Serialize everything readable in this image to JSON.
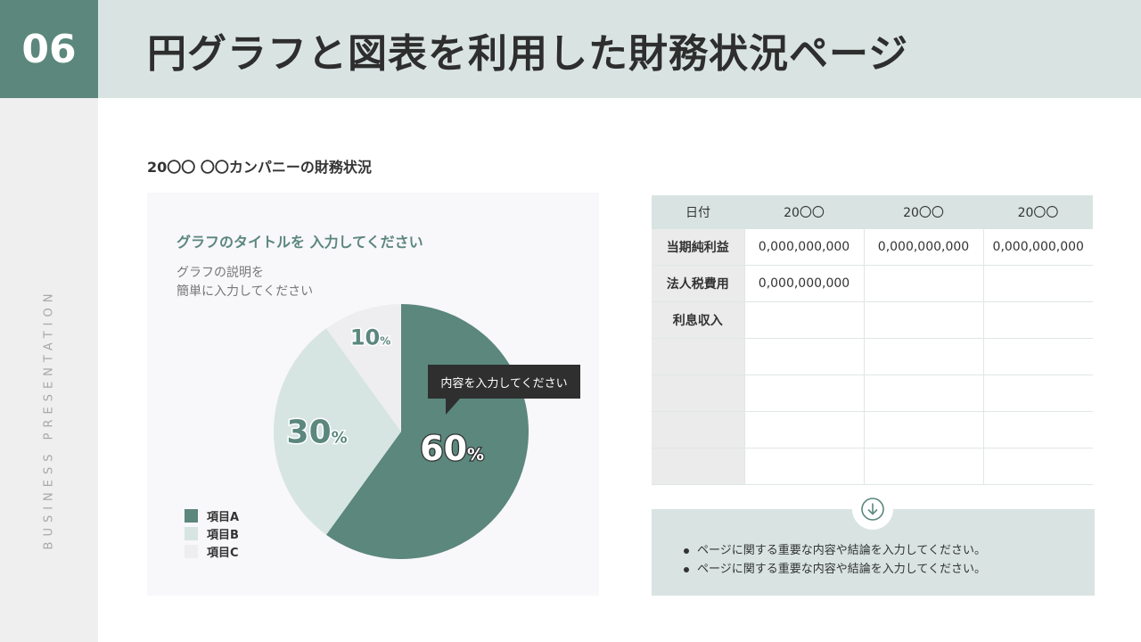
{
  "header": {
    "number": "06",
    "title": "円グラフと図表を利用した財務状況ページ"
  },
  "side_label": "BUSINESS PRESENTATION",
  "subtitle": "20〇〇 〇〇カンパニーの財務状況",
  "chart_panel": {
    "title": "グラフのタイトルを 入力してください",
    "description": [
      "グラフの説明を",
      "簡単に入力してください"
    ],
    "callout": "内容を入力してください"
  },
  "chart_data": {
    "type": "pie",
    "series": [
      {
        "name": "項目A",
        "value": 60,
        "label": "60",
        "unit": "%",
        "color": "#5b877d"
      },
      {
        "name": "項目B",
        "value": 30,
        "label": "30",
        "unit": "%",
        "color": "#d6e5e1"
      },
      {
        "name": "項目C",
        "value": 10,
        "label": "10",
        "unit": "%",
        "color": "#eeedf0"
      }
    ],
    "legend_position": "bottom-left"
  },
  "table": {
    "headers": [
      "日付",
      "20〇〇",
      "20〇〇",
      "20〇〇"
    ],
    "rows": [
      [
        "当期純利益",
        "0,000,000,000",
        "0,000,000,000",
        "0,000,000,000"
      ],
      [
        "法人税費用",
        "0,000,000,000",
        "",
        ""
      ],
      [
        "利息収入",
        "",
        "",
        ""
      ],
      [
        "",
        "",
        "",
        ""
      ],
      [
        "",
        "",
        "",
        ""
      ],
      [
        "",
        "",
        "",
        ""
      ],
      [
        "",
        "",
        "",
        ""
      ]
    ]
  },
  "summary": {
    "bullets": [
      "ページに関する重要な内容や結論を入力してください。",
      "ページに関する重要な内容や結論を入力してください。"
    ]
  },
  "icons": {
    "down_arrow": "arrow-down-circle-icon"
  }
}
